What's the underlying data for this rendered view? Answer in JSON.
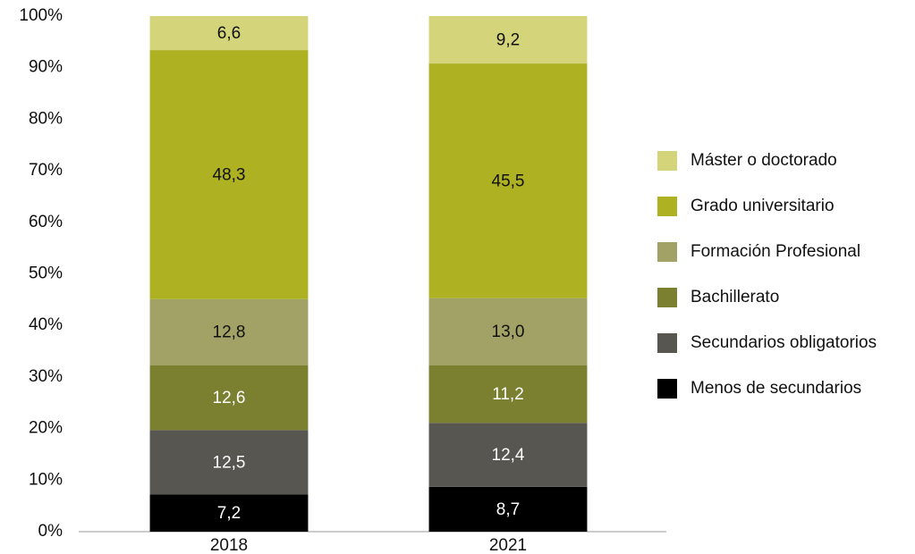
{
  "chart_data": {
    "type": "stacked_bar",
    "categories": [
      "2018",
      "2021"
    ],
    "series": [
      {
        "name": "Menos de secundarios",
        "color": "#000000",
        "values": [
          7.2,
          8.7
        ],
        "value_labels": [
          "7,2",
          "8,7"
        ]
      },
      {
        "name": "Secundarios obligatorios",
        "color": "#575651",
        "values": [
          12.5,
          12.4
        ],
        "value_labels": [
          "12,5",
          "12,4"
        ]
      },
      {
        "name": "Bachillerato",
        "color": "#7a8030",
        "values": [
          12.6,
          11.2
        ],
        "value_labels": [
          "12,6",
          "11,2"
        ]
      },
      {
        "name": "Formación Profesional",
        "color": "#a3a266",
        "values": [
          12.8,
          13.0
        ],
        "value_labels": [
          "12,8",
          "13,0"
        ]
      },
      {
        "name": "Grado universitario",
        "color": "#adb122",
        "values": [
          48.3,
          45.5
        ],
        "value_labels": [
          "48,3",
          "45,5"
        ]
      },
      {
        "name": "Máster o doctorado",
        "color": "#d4d47a",
        "values": [
          6.6,
          9.2
        ],
        "value_labels": [
          "6,6",
          "9,2"
        ]
      }
    ],
    "ylim": [
      0,
      100
    ],
    "yticks": [
      {
        "value": 0,
        "label": "0%"
      },
      {
        "value": 10,
        "label": "10%"
      },
      {
        "value": 20,
        "label": "20%"
      },
      {
        "value": 30,
        "label": "30%"
      },
      {
        "value": 40,
        "label": "40%"
      },
      {
        "value": 50,
        "label": "50%"
      },
      {
        "value": 60,
        "label": "60%"
      },
      {
        "value": 70,
        "label": "70%"
      },
      {
        "value": 80,
        "label": "80%"
      },
      {
        "value": 90,
        "label": "90%"
      },
      {
        "value": 100,
        "label": "100%"
      }
    ],
    "grid": false,
    "legend": "right"
  }
}
